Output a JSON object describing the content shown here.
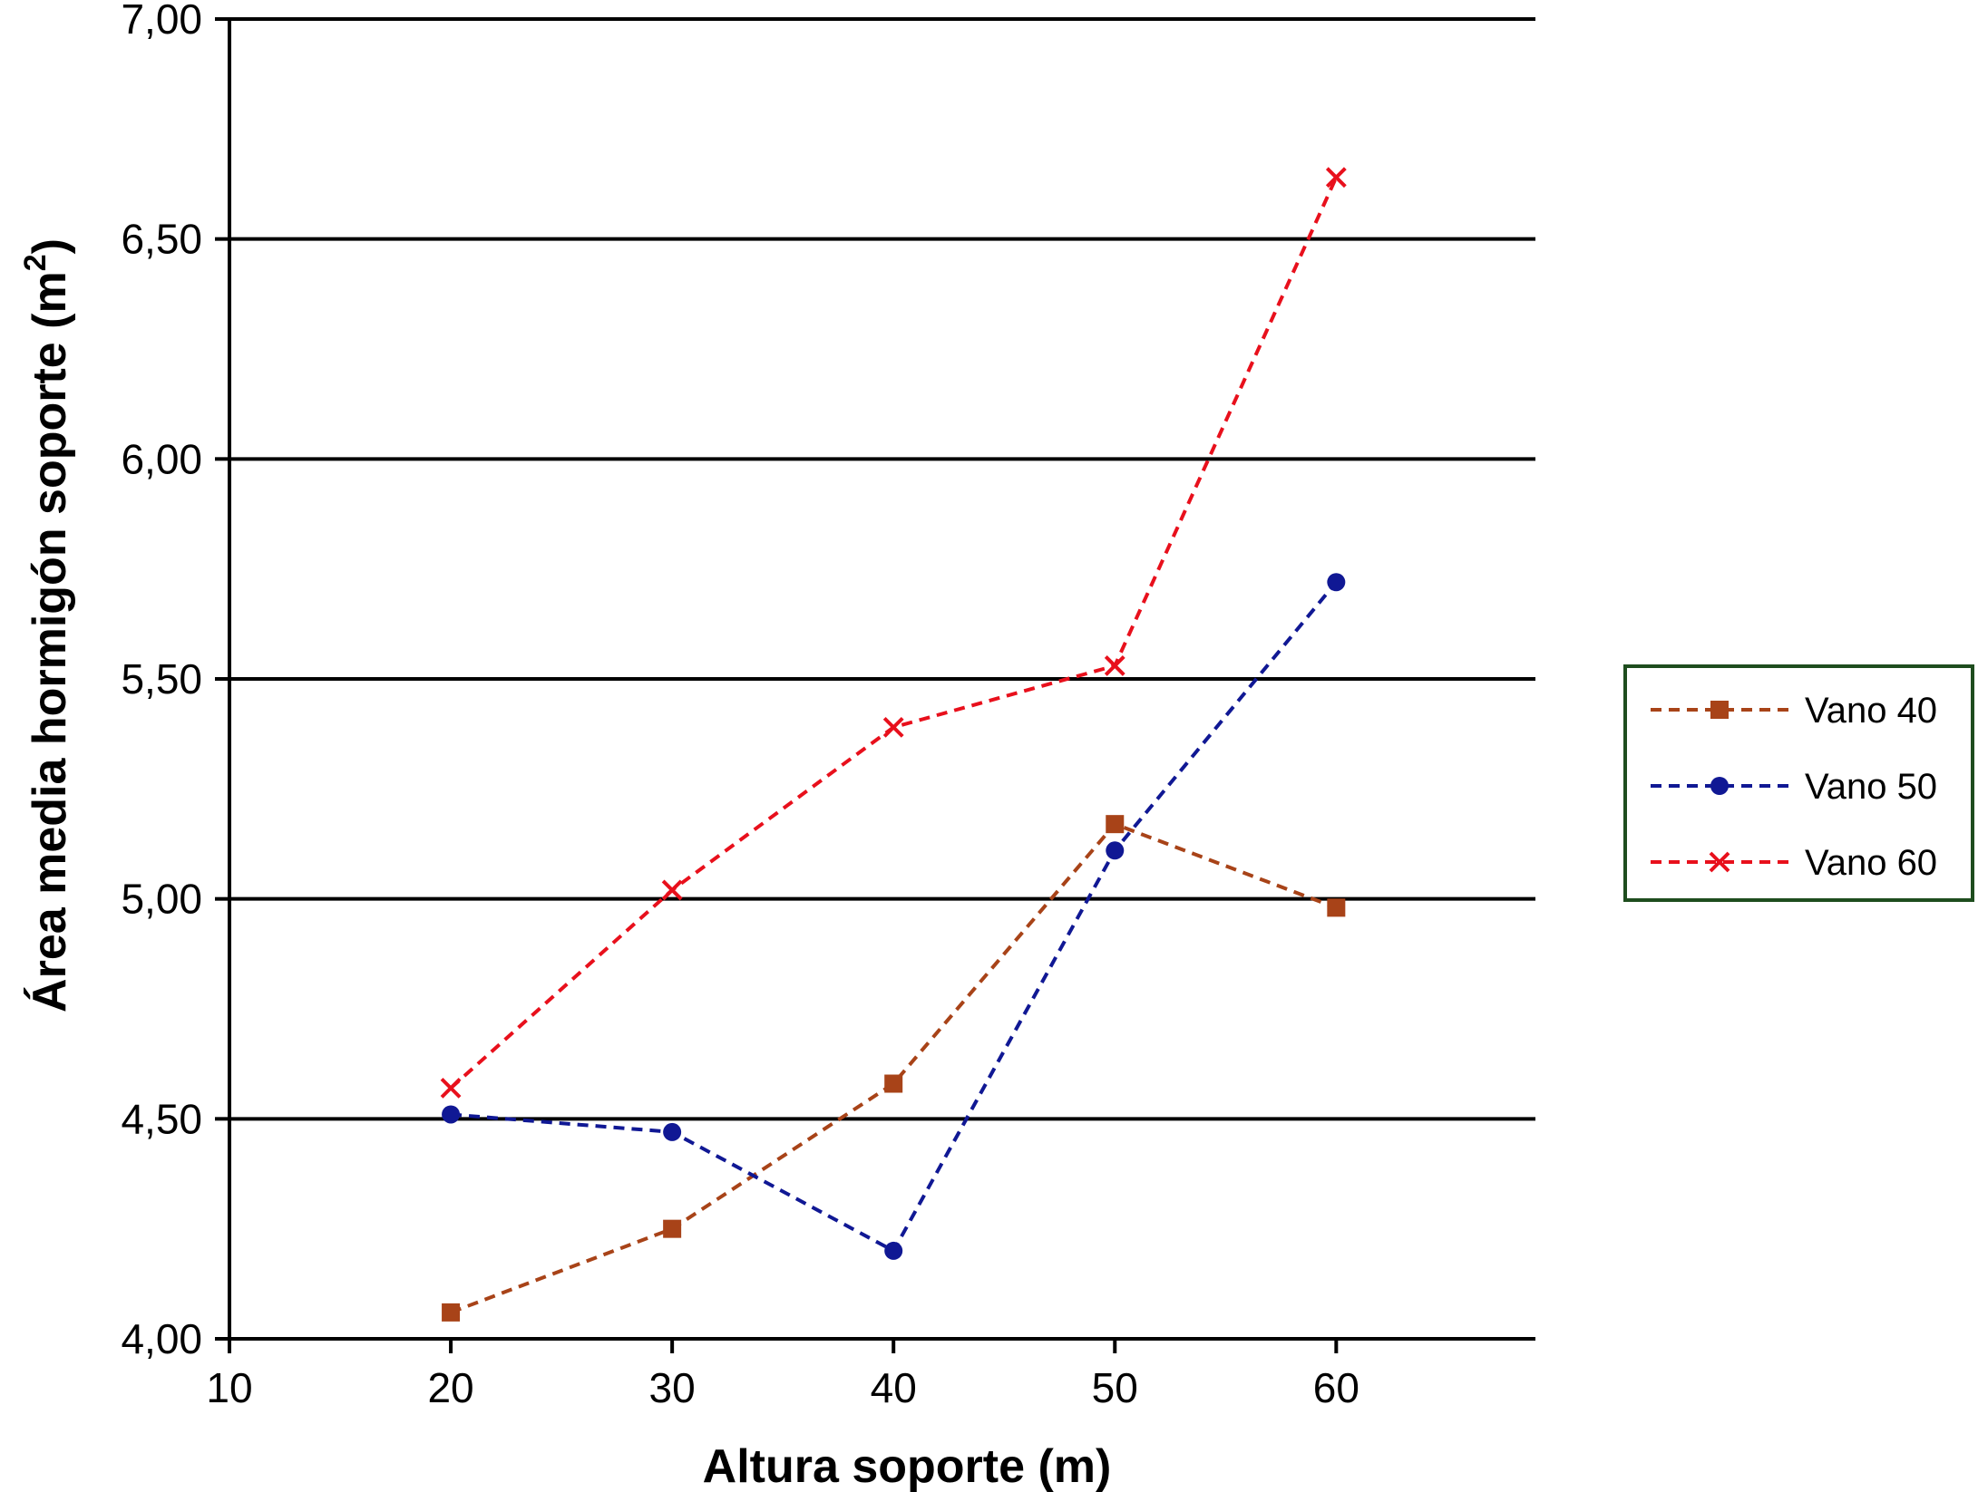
{
  "chart_data": {
    "type": "line",
    "xlabel": "Altura soporte (m)",
    "ylabel_main": "Área media hormigón soporte (m",
    "ylabel_sup": "2",
    "ylabel_end": ")",
    "xlim": [
      10,
      69
    ],
    "ylim": [
      4.0,
      7.0
    ],
    "x_ticks": [
      10,
      20,
      30,
      40,
      50,
      60
    ],
    "x_tick_labels": [
      "10",
      "20",
      "30",
      "40",
      "50",
      "60"
    ],
    "y_ticks": [
      4.0,
      4.5,
      5.0,
      5.5,
      6.0,
      6.5,
      7.0
    ],
    "y_tick_labels": [
      "4,00",
      "4,50",
      "5,00",
      "5,50",
      "6,00",
      "6,50",
      "7,00"
    ],
    "grid": "horizontal",
    "legend_position": "right",
    "x": [
      20,
      30,
      40,
      50,
      60
    ],
    "series": [
      {
        "name": "Vano 40",
        "values": [
          4.06,
          4.25,
          4.58,
          5.17,
          4.98
        ],
        "color": "#a84318",
        "marker": "square"
      },
      {
        "name": "Vano 50",
        "values": [
          4.51,
          4.47,
          4.2,
          5.11,
          5.72
        ],
        "color": "#101894",
        "marker": "circle"
      },
      {
        "name": "Vano 60",
        "values": [
          4.57,
          5.02,
          5.39,
          5.53,
          6.64
        ],
        "color": "#e8101c",
        "marker": "x"
      }
    ],
    "legend_border_color": "#1e4d1e"
  }
}
